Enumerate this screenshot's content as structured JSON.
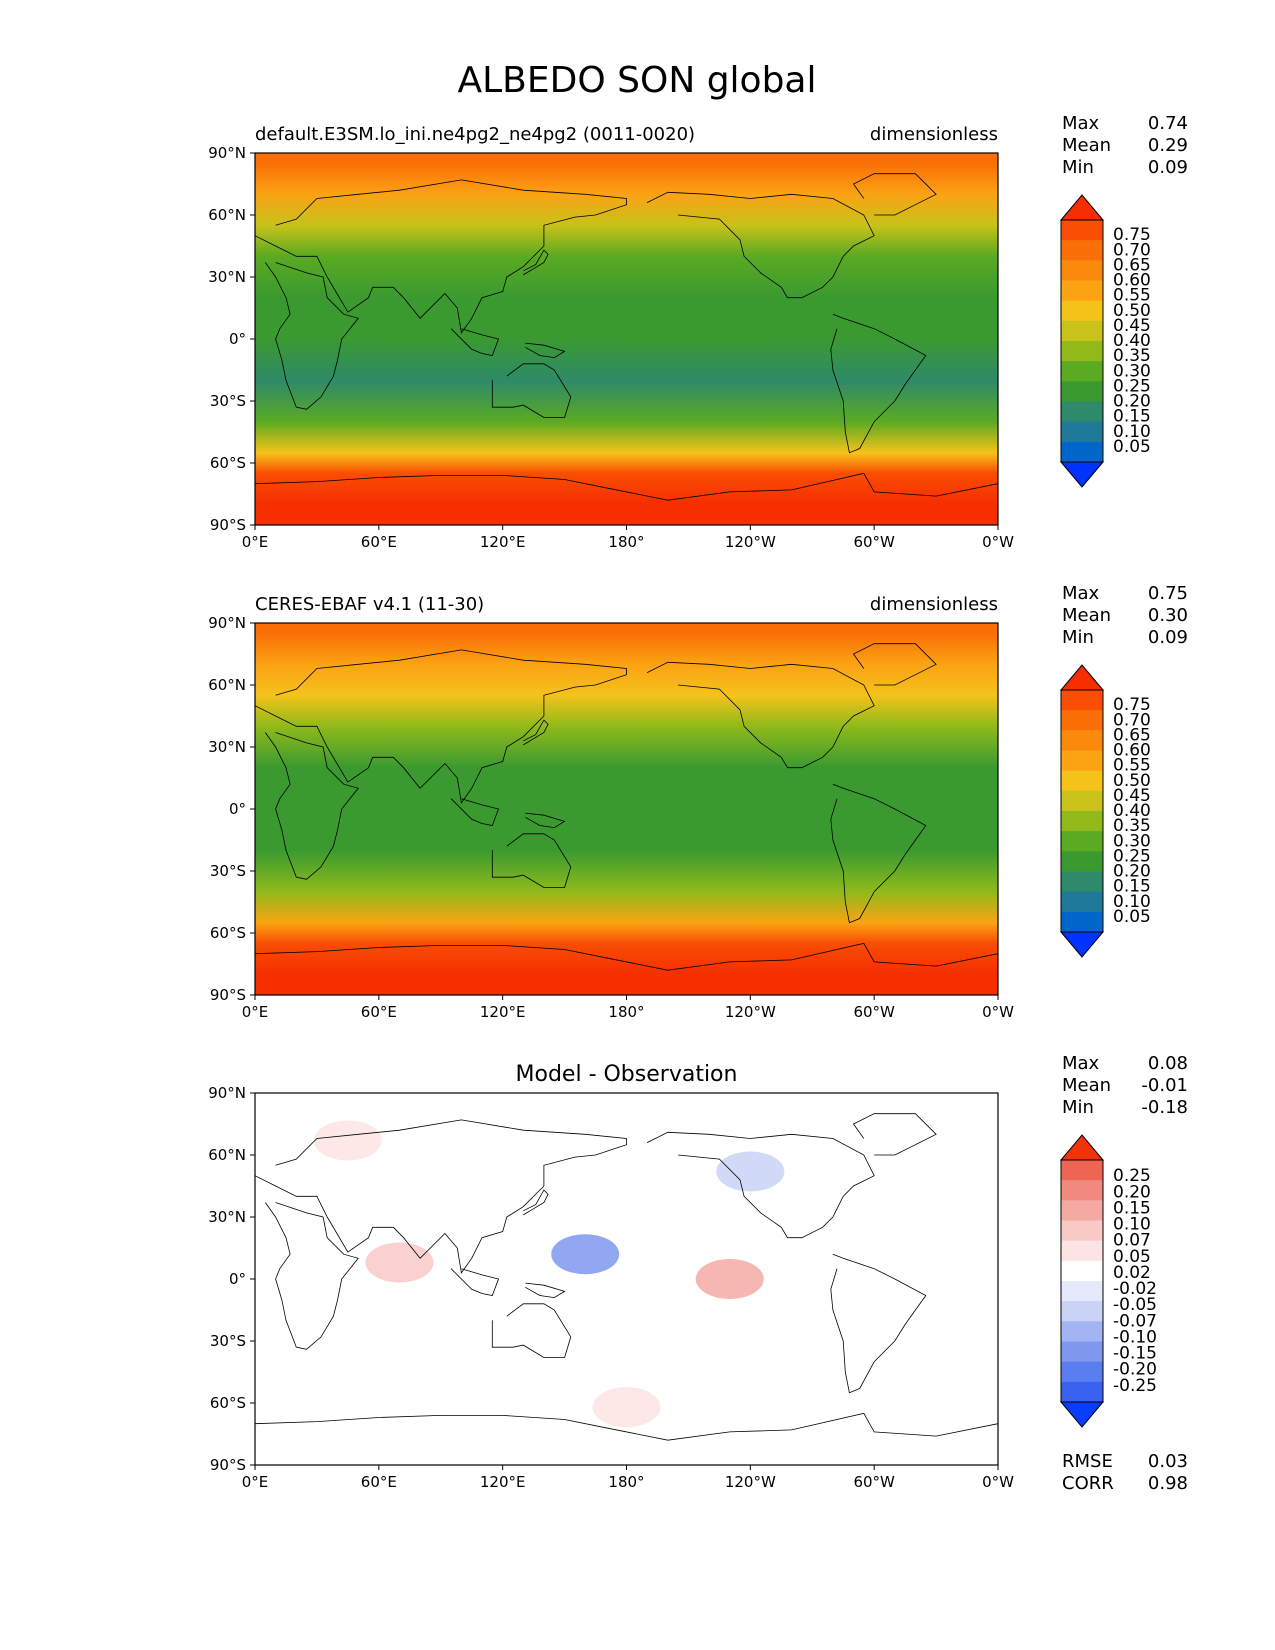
{
  "figure": {
    "title": "ALBEDO SON global"
  },
  "axes": {
    "lat_ticks": [
      "90°N",
      "60°N",
      "30°N",
      "0°",
      "30°S",
      "60°S",
      "90°S"
    ],
    "lon_ticks": [
      "0°E",
      "60°E",
      "120°E",
      "180°",
      "120°W",
      "60°W",
      "0°W"
    ]
  },
  "colors": {
    "seq": [
      "#0033ff",
      "#0066cc",
      "#1f7a99",
      "#2e8a6a",
      "#3a9a30",
      "#5aaa22",
      "#8fba1a",
      "#c8c21a",
      "#f5c21a",
      "#fba313",
      "#fb8a0c",
      "#fa6f06",
      "#f94e03",
      "#f62e00"
    ],
    "diff": [
      "#0a3cff",
      "#3a62f0",
      "#5a7ef0",
      "#7f98ee",
      "#a3b4f2",
      "#c8d3f5",
      "#e4eafb",
      "#ffffff",
      "#fde4e4",
      "#f9c9c6",
      "#f5a9a3",
      "#f1897f",
      "#ee6553",
      "#f0340a"
    ],
    "coast": "#000000"
  },
  "panels": [
    {
      "id": "model",
      "left_title": "default.E3SM.lo_ini.ne4pg2_ne4pg2 (0011-0020)",
      "center_title": "",
      "right_title": "dimensionless",
      "stats": [
        {
          "label": "Max",
          "value": "0.74"
        },
        {
          "label": "Mean",
          "value": "0.29"
        },
        {
          "label": "Min",
          "value": "0.09"
        }
      ],
      "colorbar": {
        "ticks": [
          "0.75",
          "0.70",
          "0.65",
          "0.60",
          "0.55",
          "0.50",
          "0.45",
          "0.40",
          "0.35",
          "0.30",
          "0.25",
          "0.20",
          "0.15",
          "0.10",
          "0.05"
        ],
        "palette": "seq"
      },
      "bottom_stats": []
    },
    {
      "id": "obs",
      "left_title": "CERES-EBAF v4.1 (11-30)",
      "center_title": "",
      "right_title": "dimensionless",
      "stats": [
        {
          "label": "Max",
          "value": "0.75"
        },
        {
          "label": "Mean",
          "value": "0.30"
        },
        {
          "label": "Min",
          "value": "0.09"
        }
      ],
      "colorbar": {
        "ticks": [
          "0.75",
          "0.70",
          "0.65",
          "0.60",
          "0.55",
          "0.50",
          "0.45",
          "0.40",
          "0.35",
          "0.30",
          "0.25",
          "0.20",
          "0.15",
          "0.10",
          "0.05"
        ],
        "palette": "seq"
      },
      "bottom_stats": []
    },
    {
      "id": "diff",
      "left_title": "",
      "center_title": "Model - Observation",
      "right_title": "",
      "stats": [
        {
          "label": "Max",
          "value": "0.08"
        },
        {
          "label": "Mean",
          "value": "-0.01"
        },
        {
          "label": "Min",
          "value": "-0.18"
        }
      ],
      "colorbar": {
        "ticks": [
          "0.25",
          "0.20",
          "0.15",
          "0.10",
          "0.07",
          "0.05",
          "0.02",
          "-0.02",
          "-0.05",
          "-0.07",
          "-0.10",
          "-0.15",
          "-0.20",
          "-0.25"
        ],
        "palette": "diff"
      },
      "bottom_stats": [
        {
          "label": "RMSE",
          "value": "0.03"
        },
        {
          "label": "CORR",
          "value": "0.98"
        }
      ]
    }
  ],
  "chart_data": [
    {
      "type": "heatmap",
      "name_printed": "default.E3SM.lo_ini.ne4pg2_ne4pg2 (0011-0020)",
      "units": "dimensionless",
      "x_range": [
        0,
        360
      ],
      "y_range": [
        -90,
        90
      ],
      "levels": [
        0.05,
        0.1,
        0.15,
        0.2,
        0.25,
        0.3,
        0.35,
        0.4,
        0.45,
        0.5,
        0.55,
        0.6,
        0.65,
        0.7,
        0.75
      ],
      "stats": {
        "max": 0.74,
        "mean": 0.29,
        "min": 0.09
      },
      "bands": [
        {
          "lat": 85,
          "value": 0.58
        },
        {
          "lat": 70,
          "value": 0.48
        },
        {
          "lat": 55,
          "value": 0.38
        },
        {
          "lat": 40,
          "value": 0.28
        },
        {
          "lat": 20,
          "value": 0.2
        },
        {
          "lat": 0,
          "value": 0.2
        },
        {
          "lat": -20,
          "value": 0.18
        },
        {
          "lat": -40,
          "value": 0.28
        },
        {
          "lat": -55,
          "value": 0.42
        },
        {
          "lat": -65,
          "value": 0.62
        },
        {
          "lat": -80,
          "value": 0.72
        }
      ]
    },
    {
      "type": "heatmap",
      "name_printed": "CERES-EBAF v4.1 (11-30)",
      "units": "dimensionless",
      "x_range": [
        0,
        360
      ],
      "y_range": [
        -90,
        90
      ],
      "levels": [
        0.05,
        0.1,
        0.15,
        0.2,
        0.25,
        0.3,
        0.35,
        0.4,
        0.45,
        0.5,
        0.55,
        0.6,
        0.65,
        0.7,
        0.75
      ],
      "stats": {
        "max": 0.75,
        "mean": 0.3,
        "min": 0.09
      },
      "bands": [
        {
          "lat": 85,
          "value": 0.58
        },
        {
          "lat": 70,
          "value": 0.48
        },
        {
          "lat": 55,
          "value": 0.4
        },
        {
          "lat": 40,
          "value": 0.3
        },
        {
          "lat": 20,
          "value": 0.22
        },
        {
          "lat": 0,
          "value": 0.22
        },
        {
          "lat": -20,
          "value": 0.2
        },
        {
          "lat": -40,
          "value": 0.3
        },
        {
          "lat": -55,
          "value": 0.45
        },
        {
          "lat": -65,
          "value": 0.62
        },
        {
          "lat": -80,
          "value": 0.72
        }
      ]
    },
    {
      "type": "heatmap",
      "name_printed": "Model - Observation",
      "x_range": [
        0,
        360
      ],
      "y_range": [
        -90,
        90
      ],
      "levels": [
        -0.25,
        -0.2,
        -0.15,
        -0.1,
        -0.07,
        -0.05,
        -0.02,
        0.02,
        0.05,
        0.07,
        0.1,
        0.15,
        0.2,
        0.25
      ],
      "stats": {
        "max": 0.08,
        "mean": -0.01,
        "min": -0.18,
        "rmse": 0.03,
        "corr": 0.98
      },
      "features": [
        {
          "lon": 160,
          "lat": 12,
          "value": -0.15
        },
        {
          "lon": 240,
          "lat": 52,
          "value": -0.07
        },
        {
          "lon": 70,
          "lat": 8,
          "value": 0.05
        },
        {
          "lon": 230,
          "lat": 0,
          "value": 0.07
        },
        {
          "lon": 45,
          "lat": 67,
          "value": 0.02
        },
        {
          "lon": 60,
          "lat": -40,
          "value": -0.02
        },
        {
          "lon": 180,
          "lat": -62,
          "value": 0.02
        }
      ]
    }
  ]
}
